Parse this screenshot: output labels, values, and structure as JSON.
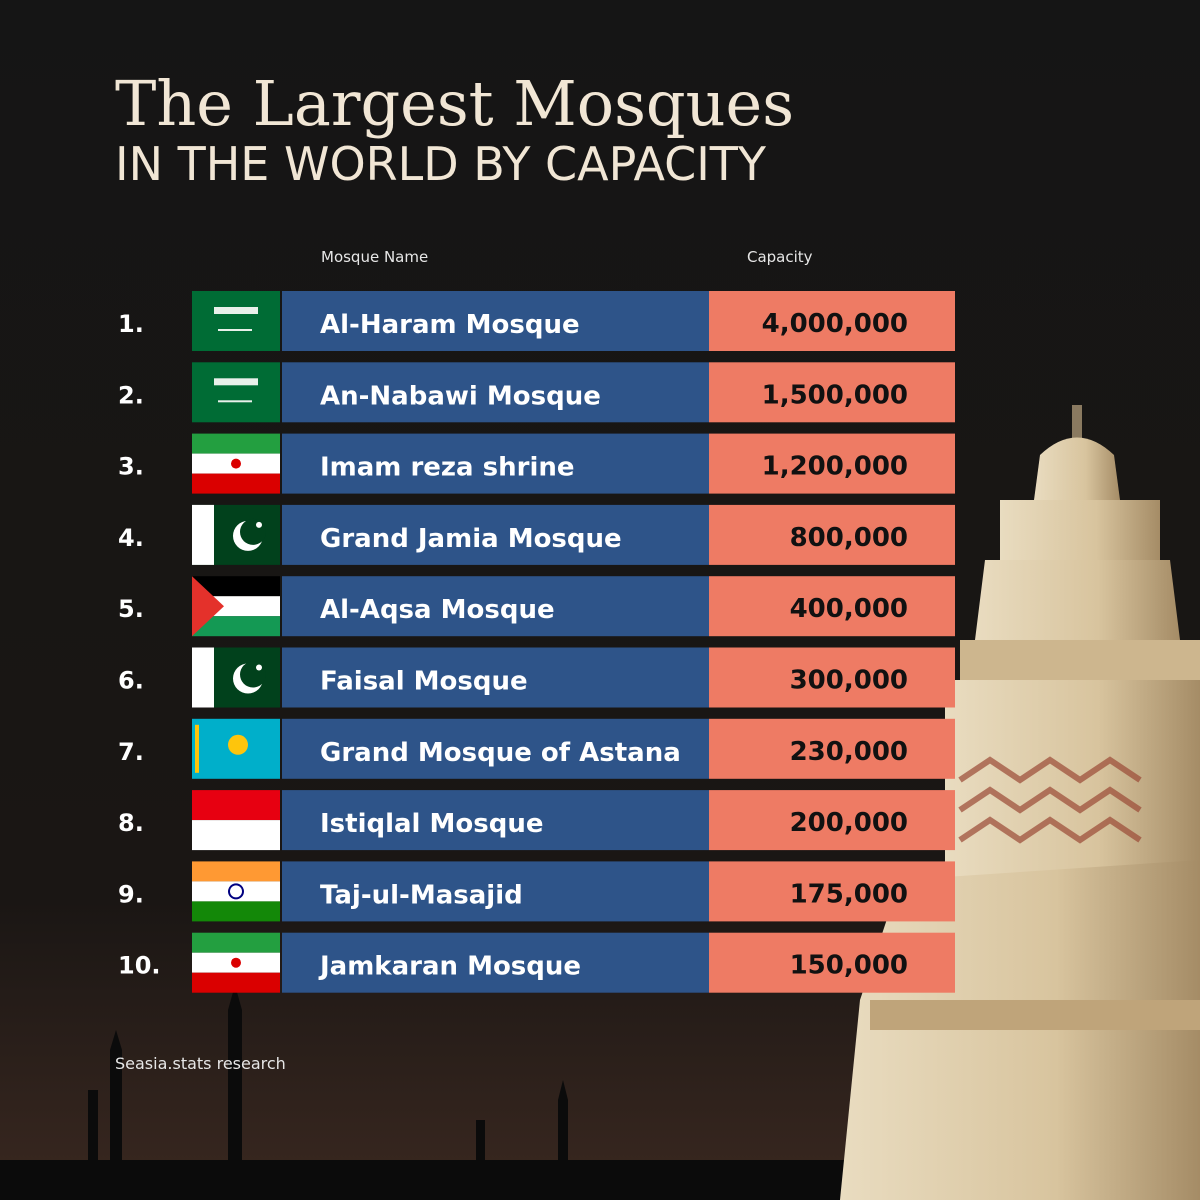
{
  "header": {
    "title": "The Largest Mosques",
    "subtitle": "IN THE WORLD BY CAPACITY"
  },
  "table": {
    "columns": [
      "Mosque Name",
      "Capacity"
    ],
    "rows": [
      [
        "1.",
        "Al-Haram Mosque",
        "4,000,000"
      ],
      [
        "2.",
        "An-Nabawi Mosque",
        "1,500,000"
      ],
      [
        "3.",
        "Imam reza shrine",
        "1,200,000"
      ],
      [
        "4.",
        "Grand Jamia Mosque",
        "800,000"
      ],
      [
        "5.",
        "Al-Aqsa Mosque",
        "400,000"
      ],
      [
        "6.",
        "Faisal Mosque",
        "300,000"
      ],
      [
        "7.",
        "Grand Mosque of Astana",
        "230,000"
      ],
      [
        "8.",
        "Istiqlal Mosque",
        "200,000"
      ],
      [
        "9.",
        "Taj-ul-Masajid",
        "175,000"
      ],
      [
        "10.",
        "Jamkaran Mosque",
        "150,000"
      ]
    ]
  },
  "footer": "Seasia.stats research"
}
